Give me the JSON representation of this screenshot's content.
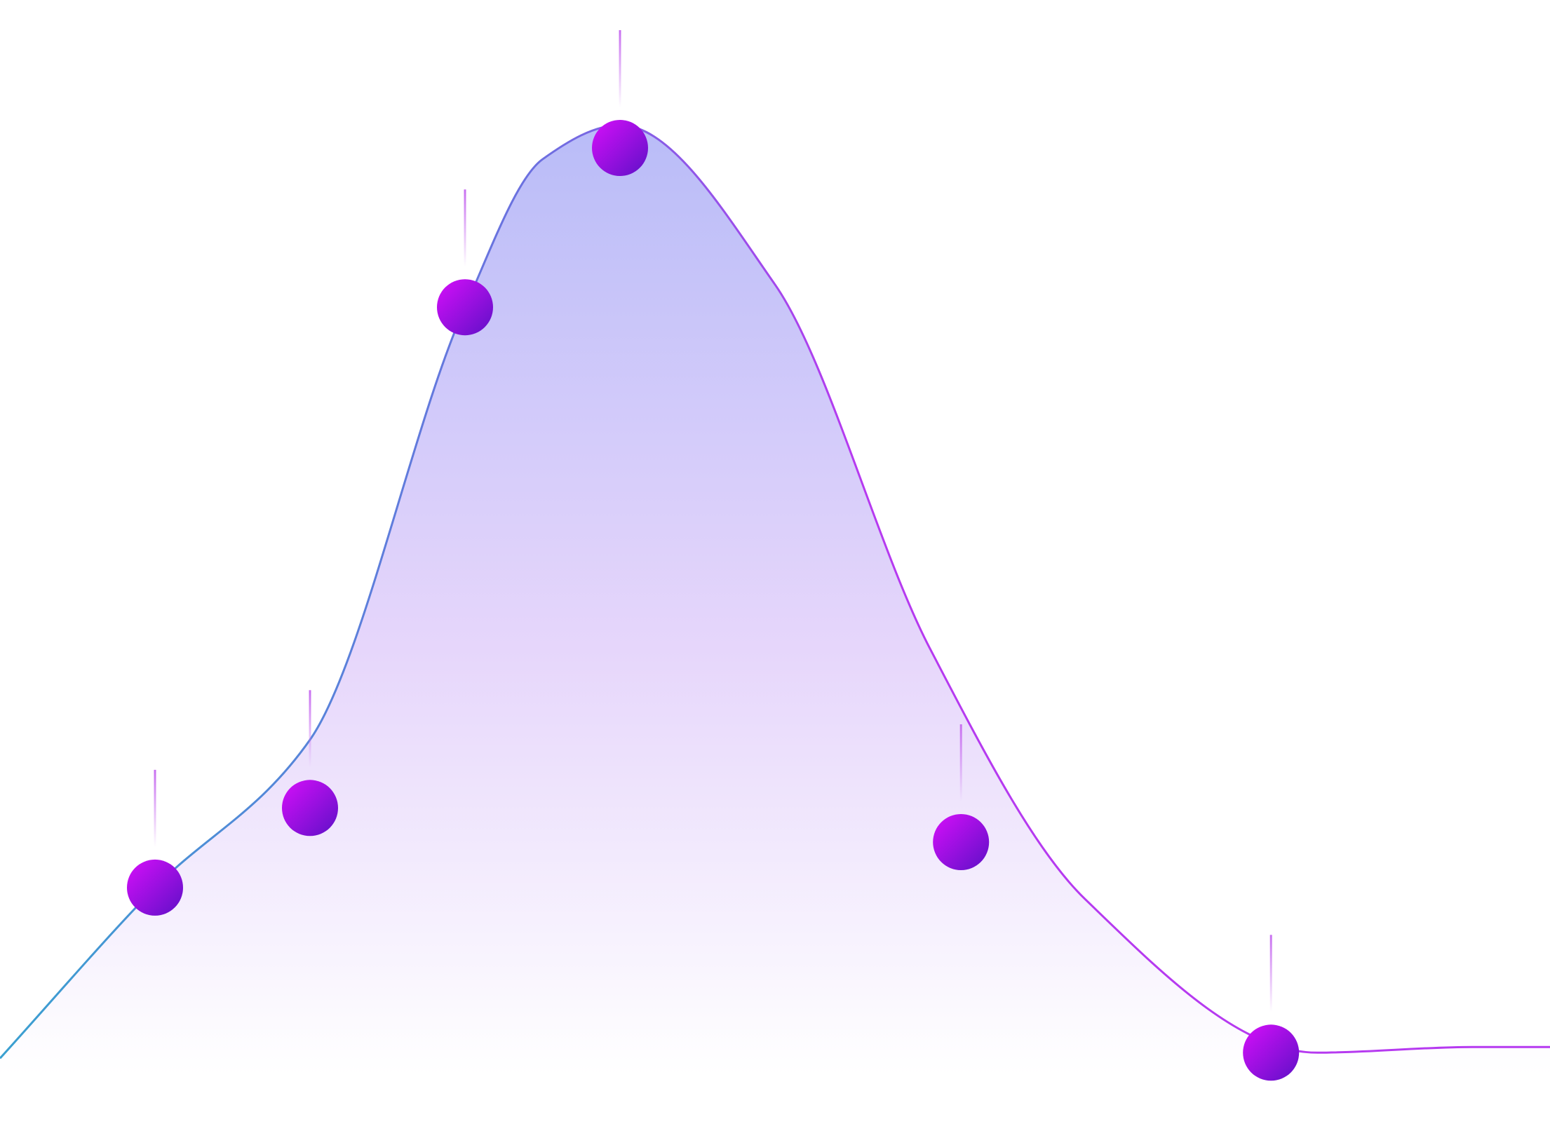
{
  "chart_data": {
    "type": "area",
    "title": "",
    "xlabel": "",
    "ylabel": "",
    "xlim": [
      0,
      10
    ],
    "ylim": [
      0,
      100
    ],
    "grid": false,
    "curve": {
      "x": [
        0,
        1,
        2,
        3,
        3.5,
        4,
        5,
        6,
        7,
        8.5,
        9.5,
        10
      ],
      "y": [
        7,
        22,
        35,
        73,
        86,
        89,
        75,
        43,
        21,
        7.5,
        8,
        8
      ]
    },
    "markers": {
      "x": [
        1,
        2,
        3,
        4,
        6.2,
        8.2
      ],
      "y": [
        22,
        29,
        73,
        87,
        26,
        7.5
      ]
    },
    "colors": {
      "line_start": "#3aa0d0",
      "line_mid": "#6d6fe0",
      "line_end": "#b63af0",
      "area_top": "#b9bcf8",
      "area_mid": "#e6d6fb",
      "area_bottom": "#ffffff",
      "marker_start": "#c40ff2",
      "marker_end": "#6a10cc",
      "stem": "#c86ff0"
    }
  }
}
